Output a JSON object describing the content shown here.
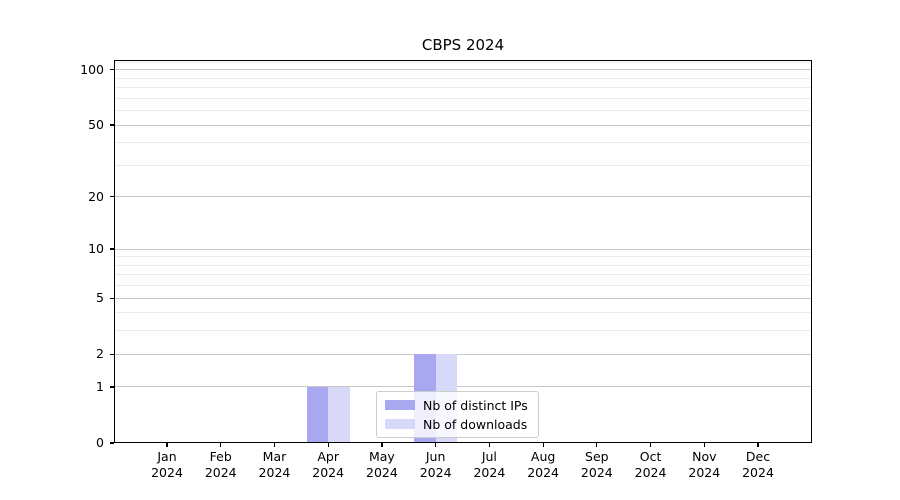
{
  "title": "CBPS 2024",
  "chart_data": {
    "type": "bar",
    "title": "CBPS 2024",
    "x_tick_labels": [
      "Jan 2024",
      "Feb 2024",
      "Mar 2024",
      "Apr 2024",
      "May 2024",
      "Jun 2024",
      "Jul 2024",
      "Aug 2024",
      "Sep 2024",
      "Oct 2024",
      "Nov 2024",
      "Dec 2024"
    ],
    "series": [
      {
        "name": "Nb of distinct IPs",
        "color": "#a8a8f0",
        "values": [
          0,
          0,
          0,
          1,
          0,
          2,
          0,
          0,
          0,
          0,
          0,
          0
        ]
      },
      {
        "name": "Nb of downloads",
        "color": "#d8d8f8",
        "values": [
          0,
          0,
          0,
          1,
          0,
          2,
          0,
          0,
          0,
          0,
          0,
          0
        ]
      }
    ],
    "yscale": "log1p",
    "ylim": [
      0,
      113
    ],
    "y_major_ticks": [
      0,
      1,
      2,
      5,
      10,
      20,
      50,
      100
    ],
    "y_minor_gridlines": [
      3,
      4,
      6,
      7,
      8,
      9,
      30,
      40,
      60,
      70,
      80,
      90,
      110
    ],
    "grid": true,
    "legend_position": "lower center"
  },
  "colors": {
    "background": "#ffffff",
    "spine": "#000000",
    "grid_major": "#c8c8c8",
    "grid_minor": "#ebebeb",
    "legend_border": "#cccccc",
    "bar_distinct_ips": "#a8a8f0",
    "bar_downloads": "#d8d8f8"
  }
}
